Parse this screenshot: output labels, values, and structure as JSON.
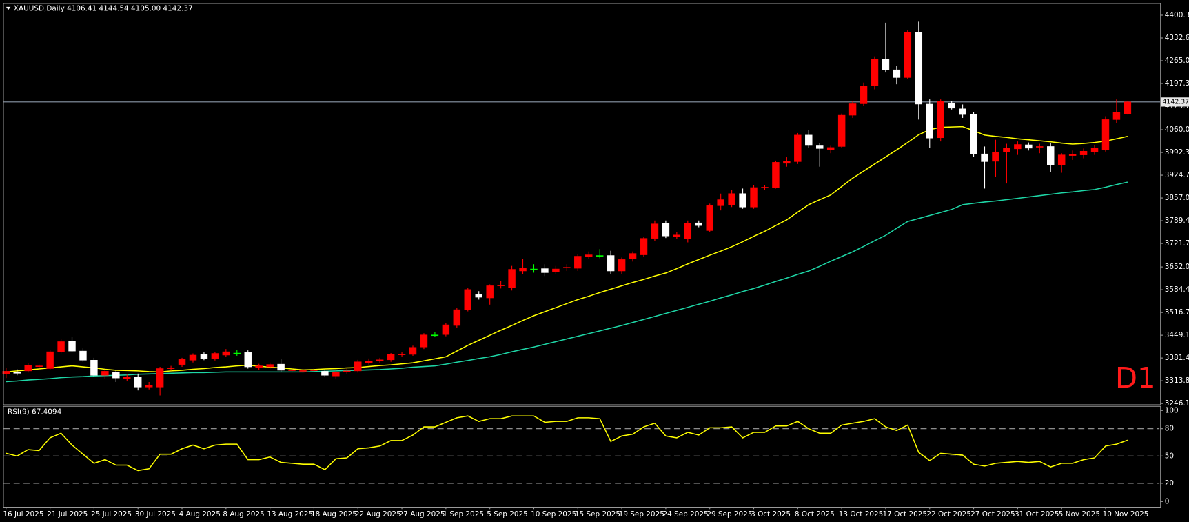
{
  "chart_data": [
    {
      "type": "candlestick",
      "header": "XAUUSD,Daily  4106.41 4144.54 4105.00 4142.37",
      "annotation": "D1",
      "categories": [
        "16 Jul 2025",
        null,
        null,
        null,
        "21 Jul 2025",
        null,
        null,
        null,
        "25 Jul 2025",
        null,
        null,
        null,
        "30 Jul 2025",
        null,
        null,
        null,
        "4 Aug 2025",
        null,
        null,
        null,
        "8 Aug 2025",
        null,
        null,
        null,
        "13 Aug 2025",
        null,
        null,
        null,
        "18 Aug 2025",
        null,
        null,
        null,
        "22 Aug 2025",
        null,
        null,
        null,
        "27 Aug 2025",
        null,
        null,
        null,
        "1 Sep 2025",
        null,
        null,
        null,
        "5 Sep 2025",
        null,
        null,
        null,
        "10 Sep 2025",
        null,
        null,
        null,
        "15 Sep 2025",
        null,
        null,
        null,
        "19 Sep 2025",
        null,
        null,
        null,
        "24 Sep 2025",
        null,
        null,
        null,
        "29 Sep 2025",
        null,
        null,
        null,
        "3 Oct 2025",
        null,
        null,
        null,
        "8 Oct 2025",
        null,
        null,
        null,
        "13 Oct 2025",
        null,
        null,
        null,
        "17 Oct 2025",
        null,
        null,
        null,
        "22 Oct 2025",
        null,
        null,
        null,
        "27 Oct 2025",
        null,
        null,
        null,
        "31 Oct 2025",
        null,
        null,
        null,
        "5 Nov 2025",
        null,
        null,
        null,
        "10 Nov 2025",
        null,
        null
      ],
      "open": [
        3335,
        3340,
        3343,
        3357,
        3350,
        3400,
        3431,
        3402,
        3375,
        3330,
        3340,
        3320,
        3325,
        3295,
        3295,
        3350,
        3362,
        3375,
        3392,
        3380,
        3390,
        3396,
        3398,
        3352,
        3355,
        3363,
        3344,
        3343,
        3344,
        3342,
        3328,
        3342,
        3343,
        3368,
        3372,
        3376,
        3392,
        3392,
        3414,
        3450,
        3451,
        3478,
        3525,
        3570,
        3560,
        3596,
        3590,
        3640,
        3646,
        3647,
        3638,
        3650,
        3648,
        3683,
        3686,
        3686,
        3640,
        3676,
        3688,
        3737,
        3782,
        3742,
        3735,
        3783,
        3760,
        3834,
        3837,
        3870,
        3830,
        3887,
        3888,
        3960,
        3965,
        4044,
        4012,
        4000,
        4010,
        4103,
        4137,
        4190,
        4270,
        4238,
        4215,
        4350,
        4136,
        4036,
        4138,
        4122,
        4106,
        3988,
        3966,
        3995,
        4003,
        4015,
        4008,
        4010,
        3956,
        3983,
        3985,
        3993,
        4000,
        4090,
        4106.41
      ],
      "high": [
        3352,
        3348,
        3366,
        3362,
        3405,
        3438,
        3445,
        3410,
        3382,
        3348,
        3346,
        3332,
        3335,
        3310,
        3355,
        3358,
        3382,
        3395,
        3398,
        3400,
        3408,
        3405,
        3404,
        3364,
        3368,
        3378,
        3352,
        3350,
        3351,
        3348,
        3346,
        3350,
        3376,
        3380,
        3382,
        3396,
        3398,
        3418,
        3455,
        3458,
        3485,
        3530,
        3590,
        3580,
        3600,
        3610,
        3655,
        3675,
        3660,
        3660,
        3655,
        3660,
        3690,
        3698,
        3705,
        3700,
        3680,
        3698,
        3742,
        3790,
        3790,
        3755,
        3790,
        3790,
        3840,
        3870,
        3880,
        3885,
        3895,
        3895,
        3968,
        3978,
        4050,
        4060,
        4020,
        4012,
        4108,
        4145,
        4200,
        4278,
        4378,
        4250,
        4355,
        4381,
        4150,
        4150,
        4146,
        4135,
        4112,
        4010,
        4030,
        4018,
        4025,
        4022,
        4018,
        4020,
        3990,
        3998,
        4004,
        4015,
        4100,
        4150,
        4144.54
      ],
      "low": [
        3322,
        3330,
        3338,
        3350,
        3345,
        3395,
        3398,
        3370,
        3325,
        3320,
        3310,
        3312,
        3285,
        3288,
        3270,
        3344,
        3355,
        3368,
        3375,
        3374,
        3385,
        3388,
        3350,
        3345,
        3350,
        3340,
        3338,
        3337,
        3339,
        3325,
        3318,
        3335,
        3338,
        3362,
        3366,
        3370,
        3386,
        3388,
        3408,
        3444,
        3446,
        3472,
        3520,
        3555,
        3540,
        3588,
        3582,
        3630,
        3635,
        3625,
        3630,
        3640,
        3640,
        3675,
        3678,
        3630,
        3630,
        3668,
        3682,
        3730,
        3738,
        3735,
        3725,
        3770,
        3755,
        3820,
        3830,
        3825,
        3825,
        3880,
        3885,
        3950,
        3958,
        4005,
        3950,
        3990,
        4005,
        4095,
        4130,
        4180,
        4230,
        4195,
        4210,
        4090,
        4005,
        4025,
        4120,
        4095,
        3980,
        3885,
        3920,
        3900,
        3985,
        3998,
        3990,
        3935,
        3932,
        3970,
        3975,
        3985,
        3995,
        4080,
        4105
      ],
      "close": [
        3342,
        3336,
        3360,
        3358,
        3400,
        3430,
        3402,
        3375,
        3330,
        3342,
        3322,
        3325,
        3295,
        3300,
        3350,
        3352,
        3377,
        3390,
        3380,
        3395,
        3400,
        3396,
        3355,
        3358,
        3362,
        3345,
        3346,
        3344,
        3346,
        3330,
        3340,
        3343,
        3370,
        3373,
        3376,
        3392,
        3393,
        3413,
        3450,
        3450,
        3480,
        3525,
        3585,
        3562,
        3596,
        3598,
        3645,
        3648,
        3646,
        3635,
        3646,
        3651,
        3684,
        3688,
        3686,
        3640,
        3674,
        3692,
        3737,
        3780,
        3744,
        3747,
        3782,
        3775,
        3834,
        3852,
        3870,
        3830,
        3888,
        3889,
        3963,
        3967,
        4044,
        4013,
        4004,
        4007,
        4103,
        4137,
        4190,
        4270,
        4238,
        4215,
        4350,
        4136,
        4035,
        4145,
        4124,
        4105,
        3988,
        3965,
        3994,
        4005,
        4016,
        4005,
        4010,
        3955,
        3985,
        3987,
        3996,
        4005,
        4090,
        4112,
        4142.37
      ],
      "up_color": "#ff0000",
      "down_color": "#ffffff",
      "doji_color": "#00ff00",
      "lines": [
        {
          "color": "#ffff00",
          "values": [
            3340,
            3343,
            3346,
            3349,
            3352,
            3355,
            3358,
            3355,
            3352,
            3348,
            3345,
            3344,
            3343,
            3341,
            3340,
            3343,
            3345,
            3348,
            3350,
            3353,
            3355,
            3358,
            3360,
            3357,
            3354,
            3352,
            3349,
            3346,
            3347,
            3349,
            3350,
            3352,
            3353,
            3356,
            3359,
            3361,
            3364,
            3367,
            3373,
            3379,
            3385,
            3402,
            3419,
            3434,
            3449,
            3464,
            3478,
            3493,
            3507,
            3519,
            3531,
            3543,
            3555,
            3565,
            3576,
            3586,
            3596,
            3606,
            3615,
            3625,
            3634,
            3647,
            3661,
            3674,
            3687,
            3699,
            3712,
            3727,
            3743,
            3758,
            3775,
            3792,
            3815,
            3837,
            3852,
            3866,
            3891,
            3916,
            3937,
            3958,
            3979,
            4000,
            4022,
            4045,
            4060,
            4067,
            4068,
            4069,
            4057,
            4044,
            4040,
            4037,
            4033,
            4030,
            4027,
            4024,
            4020,
            4017,
            4019,
            4022,
            4026,
            4033,
            4040
          ]
        },
        {
          "color": "#1ed6a6",
          "values": [
            3311,
            3313,
            3316,
            3318,
            3320,
            3323,
            3325,
            3326,
            3328,
            3329,
            3330,
            3331,
            3333,
            3334,
            3335,
            3336,
            3337,
            3338,
            3338,
            3339,
            3340,
            3340,
            3340,
            3340,
            3340,
            3340,
            3340,
            3340,
            3341,
            3342,
            3343,
            3344,
            3345,
            3346,
            3347,
            3349,
            3351,
            3354,
            3356,
            3358,
            3363,
            3369,
            3374,
            3380,
            3385,
            3392,
            3400,
            3407,
            3414,
            3422,
            3430,
            3438,
            3446,
            3454,
            3462,
            3470,
            3478,
            3487,
            3496,
            3505,
            3514,
            3523,
            3532,
            3541,
            3550,
            3560,
            3569,
            3579,
            3588,
            3598,
            3609,
            3619,
            3630,
            3640,
            3654,
            3669,
            3683,
            3697,
            3713,
            3730,
            3746,
            3767,
            3787,
            3796,
            3805,
            3814,
            3823,
            3837,
            3841,
            3845,
            3848,
            3852,
            3856,
            3860,
            3864,
            3868,
            3872,
            3875,
            3879,
            3882,
            3889,
            3897,
            3904
          ]
        }
      ],
      "last_price": {
        "value": 4142.37,
        "label": "4142.37"
      },
      "ylim": [
        3243.5,
        4434.1
      ],
      "yticks": [
        {
          "value": 4400.3,
          "label": "4400.30"
        },
        4332.65,
        {
          "value": 4265,
          "label": "4265.00"
        },
        4197.35,
        {
          "value": 4129.7,
          "label": "4129.70"
        },
        {
          "value": 4060,
          "label": "4060.00"
        },
        3992.35,
        {
          "value": 3924.7,
          "label": "3924.70"
        },
        3857.05,
        {
          "value": 3789.4,
          "label": "3789.40"
        },
        3721.75,
        3652.05,
        {
          "value": 3584.4,
          "label": "3584.40"
        },
        3516.75,
        {
          "value": 3449.1,
          "label": "3449.10"
        },
        3381.45,
        {
          "value": 3313.8,
          "label": "3313.80"
        },
        3246.15
      ]
    },
    {
      "type": "line",
      "title": "RSI(9) 67.4094",
      "color": "#ffff00",
      "values": [
        53,
        50,
        57,
        56,
        70,
        75,
        62,
        52,
        42,
        46,
        40,
        40,
        34,
        36,
        52,
        52,
        58,
        62,
        58,
        62,
        63,
        63,
        46,
        46,
        49,
        43,
        42,
        41,
        41,
        35,
        47,
        48,
        58,
        59,
        61,
        67,
        67,
        73,
        82,
        82,
        87,
        92,
        94,
        88,
        91,
        91,
        94,
        94,
        94,
        87,
        88,
        88,
        92,
        92,
        91,
        66,
        72,
        74,
        82,
        86,
        72,
        70,
        76,
        73,
        81,
        81,
        82,
        70,
        76,
        76,
        83,
        83,
        88,
        80,
        75,
        75,
        84,
        86,
        88,
        91,
        82,
        78,
        84,
        54,
        45,
        53,
        52,
        51,
        41,
        39,
        42,
        43,
        44,
        43,
        44,
        38,
        42,
        42,
        46,
        48,
        61,
        63,
        67.4094
      ],
      "ylim": [
        -5.8,
        104.2
      ],
      "yticks": [
        0,
        20,
        50,
        80,
        100
      ],
      "levels": [
        20,
        50,
        80
      ]
    }
  ]
}
